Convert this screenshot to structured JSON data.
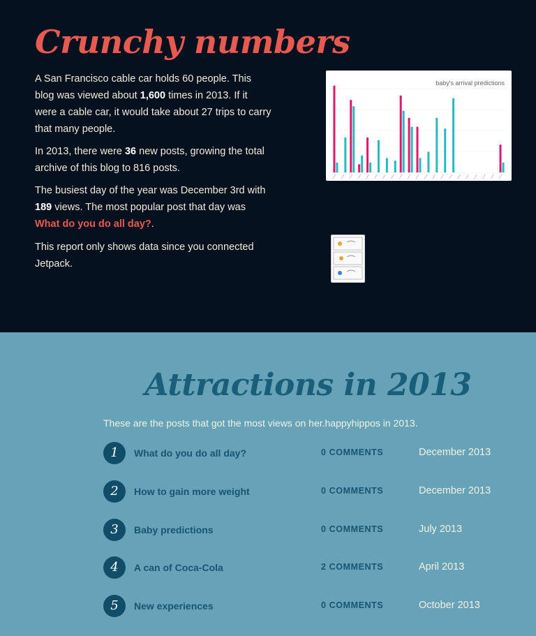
{
  "crunchy": {
    "title": "Crunchy numbers",
    "p1_a": "A San Francisco cable car holds 60 people. This blog was viewed about ",
    "p1_views": "1,600",
    "p1_b": " times in 2013. If it were a cable car, it would take about 27 trips to carry that many people.",
    "p2_a": "In 2013, there were ",
    "p2_posts": "36",
    "p2_b": " new posts, growing the total archive of this blog to 816 posts.",
    "p3_a": "The busiest day of the year was December 3rd with ",
    "p3_views": "189",
    "p3_b": " views. The most popular post that day was ",
    "p3_link": "What do you do all day?",
    "p3_c": ".",
    "p4": "This report only shows data since you connected Jetpack."
  },
  "chart_data": {
    "type": "bar",
    "title": "baby's arrival predictions",
    "series": [
      {
        "color": "#e0186c",
        "values": [
          0.96,
          0,
          0.8,
          0.08,
          0.38,
          0,
          0,
          0,
          0.85,
          0.6,
          0.5,
          0,
          0,
          0,
          0,
          0,
          0,
          0,
          0,
          0,
          0.3
        ]
      },
      {
        "color": "#27b9c3",
        "values": [
          0.1,
          0.38,
          0.73,
          0.18,
          0.1,
          0.35,
          0.15,
          0.12,
          0.68,
          0.5,
          0.15,
          0.22,
          0.6,
          0.48,
          0.82,
          0,
          0,
          0,
          0,
          0,
          0.1
        ]
      }
    ]
  },
  "attractions": {
    "title": "Attractions in 2013",
    "intro": "These are the posts that got the most views on her.happyhippos in 2013.",
    "posts": [
      {
        "rank": "1",
        "title": "What do you do all day?",
        "comments": "0 COMMENTS",
        "date": "December 2013"
      },
      {
        "rank": "2",
        "title": "How to gain more weight",
        "comments": "0 COMMENTS",
        "date": "December 2013"
      },
      {
        "rank": "3",
        "title": "Baby predictions",
        "comments": "0 COMMENTS",
        "date": "July 2013"
      },
      {
        "rank": "4",
        "title": "A can of Coca-Cola",
        "comments": "2 COMMENTS",
        "date": "April 2013"
      },
      {
        "rank": "5",
        "title": "New experiences",
        "comments": "0 COMMENTS",
        "date": "October 2013"
      }
    ]
  }
}
